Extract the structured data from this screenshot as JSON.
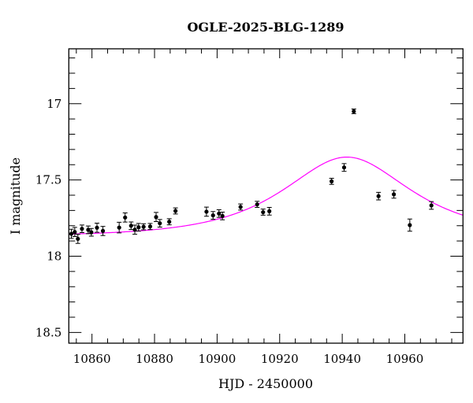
{
  "chart_data": {
    "type": "scatter",
    "title": "OGLE-2025-BLG-1289",
    "xlabel": "HJD - 2450000",
    "ylabel": "I magnitude",
    "xlim": [
      10852.6,
      10978.6
    ],
    "ylim": [
      18.57,
      16.64
    ],
    "y_inverted": true,
    "grid": false,
    "xticks": [
      10860,
      10880,
      10900,
      10920,
      10940,
      10960
    ],
    "xtick_labels": [
      "10860",
      "10880",
      "10900",
      "10920",
      "10940",
      "10960"
    ],
    "yticks": [
      17,
      17.5,
      18,
      18.5
    ],
    "ytick_labels": [
      "17",
      "17.5",
      "18",
      "18.5"
    ],
    "point_color": "#000000",
    "model_color": "#ff00ff",
    "points": [
      {
        "x": 10853.4,
        "y": 17.853,
        "err": 0.03
      },
      {
        "x": 10854.5,
        "y": 17.841,
        "err": 0.03
      },
      {
        "x": 10855.5,
        "y": 17.886,
        "err": 0.03
      },
      {
        "x": 10856.8,
        "y": 17.82,
        "err": 0.025
      },
      {
        "x": 10858.8,
        "y": 17.827,
        "err": 0.025
      },
      {
        "x": 10859.8,
        "y": 17.843,
        "err": 0.025
      },
      {
        "x": 10861.6,
        "y": 17.813,
        "err": 0.03
      },
      {
        "x": 10863.5,
        "y": 17.834,
        "err": 0.03
      },
      {
        "x": 10868.7,
        "y": 17.812,
        "err": 0.035
      },
      {
        "x": 10870.6,
        "y": 17.746,
        "err": 0.03
      },
      {
        "x": 10872.5,
        "y": 17.8,
        "err": 0.025
      },
      {
        "x": 10873.7,
        "y": 17.826,
        "err": 0.03
      },
      {
        "x": 10874.9,
        "y": 17.81,
        "err": 0.025
      },
      {
        "x": 10876.5,
        "y": 17.807,
        "err": 0.02
      },
      {
        "x": 10878.6,
        "y": 17.805,
        "err": 0.02
      },
      {
        "x": 10880.5,
        "y": 17.743,
        "err": 0.03
      },
      {
        "x": 10881.7,
        "y": 17.784,
        "err": 0.025
      },
      {
        "x": 10884.7,
        "y": 17.774,
        "err": 0.02
      },
      {
        "x": 10886.7,
        "y": 17.703,
        "err": 0.02
      },
      {
        "x": 10896.6,
        "y": 17.708,
        "err": 0.03
      },
      {
        "x": 10898.7,
        "y": 17.732,
        "err": 0.025
      },
      {
        "x": 10900.6,
        "y": 17.72,
        "err": 0.025
      },
      {
        "x": 10901.7,
        "y": 17.736,
        "err": 0.025
      },
      {
        "x": 10907.5,
        "y": 17.677,
        "err": 0.02
      },
      {
        "x": 10912.8,
        "y": 17.66,
        "err": 0.02
      },
      {
        "x": 10914.7,
        "y": 17.711,
        "err": 0.02
      },
      {
        "x": 10916.7,
        "y": 17.705,
        "err": 0.025
      },
      {
        "x": 10936.6,
        "y": 17.509,
        "err": 0.02
      },
      {
        "x": 10940.6,
        "y": 17.418,
        "err": 0.025
      },
      {
        "x": 10943.7,
        "y": 17.05,
        "err": 0.015
      },
      {
        "x": 10951.6,
        "y": 17.606,
        "err": 0.025
      },
      {
        "x": 10956.5,
        "y": 17.594,
        "err": 0.025
      },
      {
        "x": 10961.6,
        "y": 17.796,
        "err": 0.04
      },
      {
        "x": 10968.5,
        "y": 17.667,
        "err": 0.025
      }
    ],
    "model": {
      "type": "point-lens",
      "t0": 10941.5,
      "tE": 28.8,
      "u0": 0.74,
      "baseline_mag": 17.87
    }
  }
}
